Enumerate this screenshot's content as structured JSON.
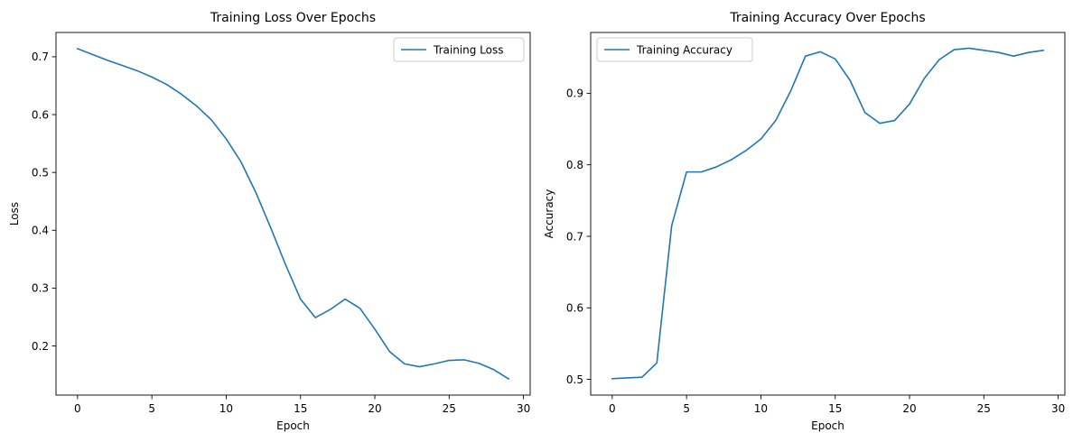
{
  "chart_data": [
    {
      "type": "line",
      "title": "Training Loss Over Epochs",
      "xlabel": "Epoch",
      "ylabel": "Loss",
      "xlim": [
        -1.45,
        30.45
      ],
      "ylim": [
        0.115,
        0.742
      ],
      "xticks": [
        0,
        5,
        10,
        15,
        20,
        25,
        30
      ],
      "yticks": [
        0.2,
        0.3,
        0.4,
        0.5,
        0.6,
        0.7
      ],
      "xtick_labels": [
        "0",
        "5",
        "10",
        "15",
        "20",
        "25",
        "30"
      ],
      "ytick_labels": [
        "0.2",
        "0.3",
        "0.4",
        "0.5",
        "0.6",
        "0.7"
      ],
      "grid": false,
      "legend_position": "top-right",
      "series": [
        {
          "name": "Training Loss",
          "color": "#1f77b4",
          "x": [
            0,
            1,
            2,
            3,
            4,
            5,
            6,
            7,
            8,
            9,
            10,
            11,
            12,
            13,
            14,
            15,
            16,
            17,
            18,
            19,
            20,
            21,
            22,
            23,
            24,
            25,
            26,
            27,
            28,
            29
          ],
          "values": [
            0.714,
            0.704,
            0.694,
            0.685,
            0.676,
            0.665,
            0.652,
            0.635,
            0.615,
            0.591,
            0.558,
            0.518,
            0.465,
            0.404,
            0.34,
            0.281,
            0.249,
            0.263,
            0.281,
            0.265,
            0.229,
            0.19,
            0.169,
            0.164,
            0.169,
            0.175,
            0.176,
            0.17,
            0.159,
            0.143
          ]
        }
      ]
    },
    {
      "type": "line",
      "title": "Training Accuracy Over Epochs",
      "xlabel": "Epoch",
      "ylabel": "Accuracy",
      "xlim": [
        -1.45,
        30.45
      ],
      "ylim": [
        0.478,
        0.985
      ],
      "xticks": [
        0,
        5,
        10,
        15,
        20,
        25,
        30
      ],
      "yticks": [
        0.5,
        0.6,
        0.7,
        0.8,
        0.9
      ],
      "xtick_labels": [
        "0",
        "5",
        "10",
        "15",
        "20",
        "25",
        "30"
      ],
      "ytick_labels": [
        "0.5",
        "0.6",
        "0.7",
        "0.8",
        "0.9"
      ],
      "grid": false,
      "legend_position": "top-left",
      "series": [
        {
          "name": "Training Accuracy",
          "color": "#1f77b4",
          "x": [
            0,
            1,
            2,
            3,
            4,
            5,
            6,
            7,
            8,
            9,
            10,
            11,
            12,
            13,
            14,
            15,
            16,
            17,
            18,
            19,
            20,
            21,
            22,
            23,
            24,
            25,
            26,
            27,
            28,
            29
          ],
          "values": [
            0.501,
            0.502,
            0.503,
            0.523,
            0.715,
            0.79,
            0.79,
            0.797,
            0.807,
            0.82,
            0.836,
            0.862,
            0.903,
            0.952,
            0.958,
            0.948,
            0.918,
            0.873,
            0.858,
            0.862,
            0.885,
            0.921,
            0.947,
            0.961,
            0.963,
            0.96,
            0.957,
            0.952,
            0.957,
            0.96
          ]
        }
      ]
    }
  ]
}
